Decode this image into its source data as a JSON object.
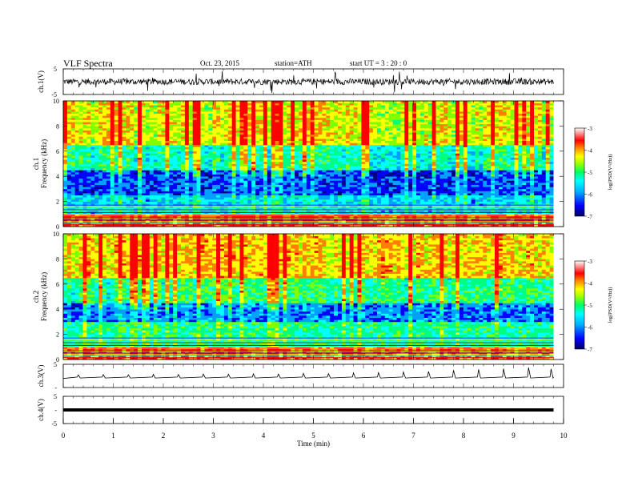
{
  "header": {
    "title": "VLF  Spectra",
    "date": "Oct. 23, 2015",
    "station": "station=ATH",
    "start": "start  UT  =   3  : 20 : 0"
  },
  "colors": {
    "spectrogram_scale": [
      "#000080",
      "#0000ff",
      "#00a0ff",
      "#00ffff",
      "#00ff80",
      "#80ff00",
      "#ffff00",
      "#ff8000",
      "#ff0000",
      "#ffffff"
    ],
    "trace": "#000000"
  },
  "chart_data": [
    {
      "type": "line",
      "name": "ch1-waveform",
      "ylabel": "ch.1(V)",
      "ylim": [
        -5,
        5
      ],
      "yticks": [
        "5",
        "-5"
      ],
      "xlim": [
        0,
        10
      ],
      "description_level_V": {
        "baseline": 0,
        "typical_amplitude": 1.2,
        "peak_amplitude": 4.5
      }
    },
    {
      "type": "heatmap",
      "name": "ch1-spectrogram",
      "ylabel": "Frequency (kHz)",
      "channel_label": "ch.1",
      "ylim": [
        0,
        10
      ],
      "yticks": [
        "0",
        "2",
        "4",
        "6",
        "8",
        "10"
      ],
      "xlim": [
        0,
        9.8
      ],
      "colorbar": {
        "label": "log(PSD(V²/Hz))",
        "range": [
          -7,
          -3
        ],
        "ticks": [
          "-3",
          "-4",
          "-5",
          "-6",
          "-7"
        ]
      },
      "band_levels": [
        {
          "f_min": 0,
          "f_max": 1,
          "log_psd": -3.5
        },
        {
          "f_min": 1,
          "f_max": 2.5,
          "log_psd": -5.6
        },
        {
          "f_min": 2.5,
          "f_max": 4.5,
          "log_psd": -6.2
        },
        {
          "f_min": 4.5,
          "f_max": 6.5,
          "log_psd": -5.2
        },
        {
          "f_min": 6.5,
          "f_max": 10,
          "log_psd": -4.2
        }
      ]
    },
    {
      "type": "heatmap",
      "name": "ch2-spectrogram",
      "ylabel": "Frequency (kHz)",
      "channel_label": "ch.2",
      "ylim": [
        0,
        10
      ],
      "yticks": [
        "0",
        "2",
        "4",
        "6",
        "8",
        "10"
      ],
      "xlim": [
        0,
        9.8
      ],
      "colorbar": {
        "label": "log(PSD(V²/Hz))",
        "range": [
          -7,
          -3
        ],
        "ticks": [
          "-3",
          "-4",
          "-5",
          "-6",
          "-7"
        ]
      },
      "band_levels": [
        {
          "f_min": 0,
          "f_max": 1,
          "log_psd": -3.6
        },
        {
          "f_min": 1,
          "f_max": 3,
          "log_psd": -5.1
        },
        {
          "f_min": 3,
          "f_max": 4.5,
          "log_psd": -6.0
        },
        {
          "f_min": 4.5,
          "f_max": 6.5,
          "log_psd": -5.0
        },
        {
          "f_min": 6.5,
          "f_max": 10,
          "log_psd": -4.0
        }
      ]
    },
    {
      "type": "line",
      "name": "ch3-waveform",
      "ylabel": "ch.3(V)",
      "ylim": [
        -5,
        5
      ],
      "yticks": [
        "5",
        "-"
      ],
      "xlim": [
        0,
        9.8
      ],
      "baseline": -0.5,
      "spikes": [
        {
          "t": 0.3,
          "v": 0.4
        },
        {
          "t": 0.8,
          "v": 0.6
        },
        {
          "t": 1.3,
          "v": 0.5
        },
        {
          "t": 1.8,
          "v": 0.7
        },
        {
          "t": 2.3,
          "v": 0.6
        },
        {
          "t": 2.8,
          "v": 0.8
        },
        {
          "t": 3.3,
          "v": 0.7
        },
        {
          "t": 3.8,
          "v": 0.9
        },
        {
          "t": 4.3,
          "v": 0.8
        },
        {
          "t": 4.8,
          "v": 1.1
        },
        {
          "t": 5.3,
          "v": 1.0
        },
        {
          "t": 5.8,
          "v": 1.3
        },
        {
          "t": 6.3,
          "v": 1.4
        },
        {
          "t": 6.8,
          "v": 1.7
        },
        {
          "t": 7.3,
          "v": 1.9
        },
        {
          "t": 7.8,
          "v": 2.5
        },
        {
          "t": 8.3,
          "v": 2.8
        },
        {
          "t": 8.8,
          "v": 3.1
        },
        {
          "t": 9.3,
          "v": 3.6
        },
        {
          "t": 9.75,
          "v": 3.0
        }
      ]
    },
    {
      "type": "line",
      "name": "ch4-waveform",
      "ylabel": "ch.4(V)",
      "ylim": [
        -5,
        5
      ],
      "yticks": [
        "5",
        "-",
        "-5"
      ],
      "xlim": [
        0,
        9.8
      ],
      "level": 0
    }
  ],
  "xaxis": {
    "label": "Time  (min)",
    "ticks": [
      "0",
      "1",
      "2",
      "3",
      "4",
      "5",
      "6",
      "7",
      "8",
      "9",
      "10"
    ],
    "range": [
      0,
      10
    ]
  }
}
